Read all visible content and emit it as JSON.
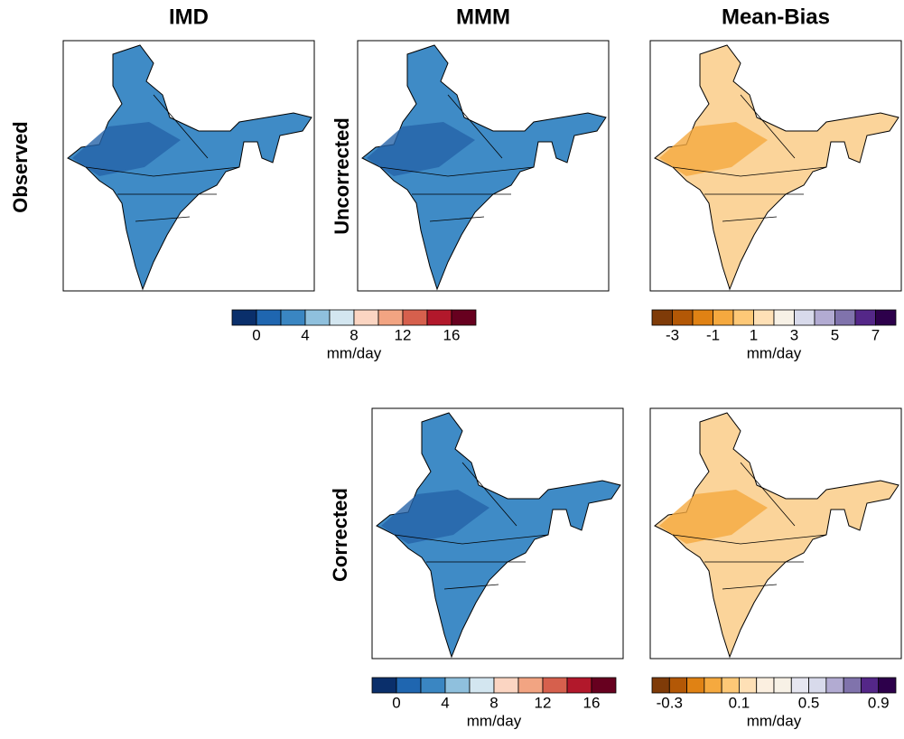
{
  "columns": [
    "IMD",
    "MMM",
    "Mean-Bias"
  ],
  "rows": [
    "Observed",
    "Uncorrected",
    "Corrected"
  ],
  "colorbars": [
    {
      "lim": [
        -2,
        18
      ],
      "ticks": [
        0,
        4,
        8,
        12,
        16
      ],
      "label": "mm/day",
      "colors": [
        "#0a2f6b",
        "#1f66b0",
        "#3a86c2",
        "#8fc0dd",
        "#d3e6f0",
        "#fbd5c2",
        "#f2a482",
        "#d6604d",
        "#b2182b",
        "#67001f"
      ]
    },
    {
      "lim": [
        -4,
        8
      ],
      "ticks": [
        -3,
        -1,
        1,
        3,
        5,
        7
      ],
      "label": "mm/day",
      "colors": [
        "#7f3b08",
        "#b35806",
        "#e08214",
        "#f5a93f",
        "#fdc877",
        "#fee0b6",
        "#f7f1e6",
        "#d8daeb",
        "#b2abd2",
        "#8073ac",
        "#542788",
        "#2d004b"
      ]
    },
    {
      "lim": [
        -2,
        18
      ],
      "ticks": [
        0,
        4,
        8,
        12,
        16
      ],
      "label": "mm/day",
      "colors": [
        "#0a2f6b",
        "#1f66b0",
        "#3a86c2",
        "#8fc0dd",
        "#d3e6f0",
        "#fbd5c2",
        "#f2a482",
        "#d6604d",
        "#b2182b",
        "#67001f"
      ]
    },
    {
      "lim": [
        -0.4,
        1.0
      ],
      "ticks": [
        -0.3,
        0.1,
        0.5,
        0.9
      ],
      "label": "mm/day",
      "colors": [
        "#7f3b08",
        "#b35806",
        "#e08214",
        "#f5a93f",
        "#fdc877",
        "#fee0b6",
        "#fbefe0",
        "#f7f1e6",
        "#e6e6f0",
        "#d8daeb",
        "#b2abd2",
        "#8073ac",
        "#542788",
        "#2d004b"
      ]
    }
  ]
}
